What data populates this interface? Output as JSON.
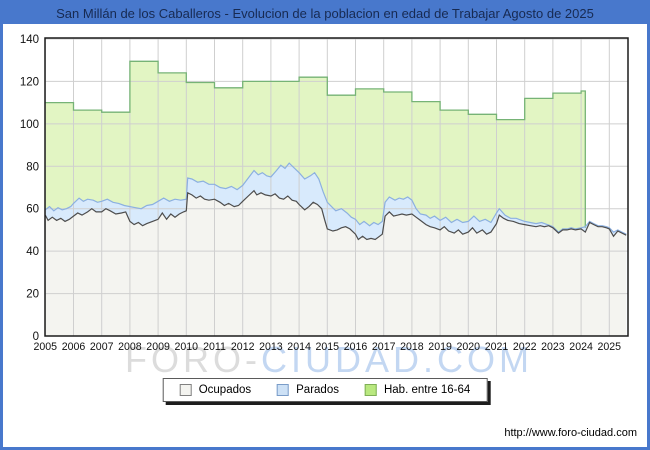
{
  "title_bar": {
    "text": "San Millán de los Caballeros - Evolucion de la poblacion en edad de Trabajar Agosto de 2025"
  },
  "watermark": {
    "part1": "FORO-",
    "part2": "CIUDAD.COM"
  },
  "footer": {
    "url": "http://www.foro-ciudad.com"
  },
  "colors": {
    "frame_blue": "#4878cc",
    "title_text": "#172a52",
    "gridline": "#cfcfcf",
    "plot_frame": "#1b1b1b",
    "hab_line": "#76b376",
    "hab_fill": "#e2f5c3",
    "parados_line": "#8cb0e0",
    "parados_fill": "#d8eafc",
    "ocupados_line": "#4d4d4d",
    "ocupados_fill": "#f4f4f0"
  },
  "legend": {
    "items": [
      {
        "label": "Ocupados",
        "swatch_fill": "#f4f4f0",
        "swatch_border": "#808080"
      },
      {
        "label": "Parados",
        "swatch_fill": "#cde1f6",
        "swatch_border": "#7a9cc8"
      },
      {
        "label": "Hab. entre 16-64",
        "swatch_fill": "#b9e87f",
        "swatch_border": "#7fae57"
      }
    ]
  },
  "chart_data": {
    "type": "area",
    "title": "San Millán de los Caballeros - Evolucion de la poblacion en edad de Trabajar Agosto de 2025",
    "xlabel": "",
    "ylabel": "",
    "xlim": [
      2005,
      2025.66
    ],
    "ylim": [
      0,
      140
    ],
    "y_ticks": [
      0,
      20,
      40,
      60,
      80,
      100,
      120,
      140
    ],
    "x_ticks": [
      "2005",
      "2006",
      "2007",
      "2008",
      "2009",
      "2010",
      "2011",
      "2012",
      "2013",
      "2014",
      "2015",
      "2016",
      "2017",
      "2018",
      "2019",
      "2020",
      "2021",
      "2022",
      "2023",
      "2024",
      "2025"
    ],
    "grid": true,
    "legend_position": "bottom",
    "series": [
      {
        "name": "Hab. entre 16-64",
        "type": "step_area",
        "note": "annual values, series ends early 2024",
        "end_x": 2024.15,
        "points": [
          [
            2005,
            110
          ],
          [
            2006,
            106.5
          ],
          [
            2007,
            105.5
          ],
          [
            2008,
            129.5
          ],
          [
            2009,
            124
          ],
          [
            2010,
            119.5
          ],
          [
            2011,
            117
          ],
          [
            2012,
            120
          ],
          [
            2013,
            120
          ],
          [
            2014,
            122
          ],
          [
            2015,
            113.5
          ],
          [
            2016,
            116.5
          ],
          [
            2017,
            115
          ],
          [
            2018,
            110.5
          ],
          [
            2019,
            106.5
          ],
          [
            2020,
            104.5
          ],
          [
            2021,
            102
          ],
          [
            2022,
            112
          ],
          [
            2023,
            114.5
          ],
          [
            2024,
            115.5
          ]
        ]
      },
      {
        "name": "Parados",
        "type": "area",
        "note": "top edge = Ocupados + Parados (stacked band)",
        "points": [
          [
            2005.0,
            59.5
          ],
          [
            2005.15,
            61
          ],
          [
            2005.3,
            59
          ],
          [
            2005.45,
            60.5
          ],
          [
            2005.6,
            59.5
          ],
          [
            2005.75,
            60
          ],
          [
            2005.9,
            61
          ],
          [
            2006.0,
            62.5
          ],
          [
            2006.2,
            65
          ],
          [
            2006.35,
            63.5
          ],
          [
            2006.5,
            64.5
          ],
          [
            2006.7,
            64
          ],
          [
            2006.85,
            63
          ],
          [
            2007.0,
            63.5
          ],
          [
            2007.2,
            64.5
          ],
          [
            2007.4,
            63
          ],
          [
            2007.6,
            62.5
          ],
          [
            2007.8,
            61.5
          ],
          [
            2008.0,
            61
          ],
          [
            2008.2,
            60.5
          ],
          [
            2008.4,
            60
          ],
          [
            2008.6,
            61.5
          ],
          [
            2008.8,
            62
          ],
          [
            2009.0,
            63.5
          ],
          [
            2009.2,
            65
          ],
          [
            2009.4,
            63.5
          ],
          [
            2009.6,
            64.5
          ],
          [
            2009.8,
            64
          ],
          [
            2010.0,
            64.5
          ],
          [
            2010.05,
            74.5
          ],
          [
            2010.2,
            74
          ],
          [
            2010.4,
            72.5
          ],
          [
            2010.6,
            73
          ],
          [
            2010.8,
            71.5
          ],
          [
            2011.0,
            71.5
          ],
          [
            2011.2,
            70
          ],
          [
            2011.4,
            69.5
          ],
          [
            2011.6,
            70.5
          ],
          [
            2011.8,
            69
          ],
          [
            2012.0,
            71
          ],
          [
            2012.2,
            74.5
          ],
          [
            2012.4,
            78
          ],
          [
            2012.55,
            76
          ],
          [
            2012.7,
            77
          ],
          [
            2012.85,
            75.5
          ],
          [
            2013.0,
            75
          ],
          [
            2013.2,
            78
          ],
          [
            2013.35,
            80.5
          ],
          [
            2013.5,
            79
          ],
          [
            2013.65,
            81.5
          ],
          [
            2013.8,
            79.5
          ],
          [
            2014.0,
            77
          ],
          [
            2014.2,
            74
          ],
          [
            2014.4,
            75.5
          ],
          [
            2014.55,
            77
          ],
          [
            2014.7,
            74
          ],
          [
            2014.85,
            68
          ],
          [
            2015.0,
            63
          ],
          [
            2015.15,
            61
          ],
          [
            2015.3,
            59
          ],
          [
            2015.5,
            60
          ],
          [
            2015.7,
            58
          ],
          [
            2015.85,
            56
          ],
          [
            2016.0,
            55
          ],
          [
            2016.15,
            52.5
          ],
          [
            2016.3,
            54
          ],
          [
            2016.5,
            52
          ],
          [
            2016.65,
            53.5
          ],
          [
            2016.8,
            52.5
          ],
          [
            2016.95,
            54
          ],
          [
            2017.05,
            63
          ],
          [
            2017.2,
            65.5
          ],
          [
            2017.4,
            64
          ],
          [
            2017.55,
            65
          ],
          [
            2017.7,
            64.5
          ],
          [
            2017.85,
            65.5
          ],
          [
            2018.0,
            64
          ],
          [
            2018.15,
            60
          ],
          [
            2018.3,
            57.5
          ],
          [
            2018.5,
            57
          ],
          [
            2018.65,
            55.5
          ],
          [
            2018.8,
            56.5
          ],
          [
            2019.0,
            54.5
          ],
          [
            2019.2,
            56
          ],
          [
            2019.4,
            53.5
          ],
          [
            2019.6,
            55
          ],
          [
            2019.8,
            53.5
          ],
          [
            2020.0,
            54
          ],
          [
            2020.2,
            56.5
          ],
          [
            2020.4,
            54
          ],
          [
            2020.6,
            55
          ],
          [
            2020.8,
            53.5
          ],
          [
            2021.0,
            58
          ],
          [
            2021.1,
            60
          ],
          [
            2021.3,
            57
          ],
          [
            2021.5,
            55.5
          ],
          [
            2021.7,
            55.5
          ],
          [
            2021.9,
            54.5
          ],
          [
            2022.0,
            54
          ],
          [
            2022.2,
            53.5
          ],
          [
            2022.4,
            53
          ],
          [
            2022.6,
            53.5
          ],
          [
            2022.8,
            52.5
          ],
          [
            2023.0,
            51.5
          ],
          [
            2023.2,
            49
          ],
          [
            2023.35,
            50.5
          ],
          [
            2023.5,
            50.5
          ],
          [
            2023.65,
            51
          ],
          [
            2023.8,
            50.5
          ],
          [
            2024.0,
            51
          ],
          [
            2024.15,
            51.5
          ],
          [
            2024.3,
            54
          ],
          [
            2024.45,
            53
          ],
          [
            2024.6,
            52
          ],
          [
            2024.75,
            52
          ],
          [
            2024.9,
            51.5
          ],
          [
            2025.0,
            51
          ],
          [
            2025.15,
            49
          ],
          [
            2025.3,
            50
          ],
          [
            2025.45,
            49
          ],
          [
            2025.6,
            48
          ]
        ]
      },
      {
        "name": "Ocupados",
        "type": "area",
        "points": [
          [
            2005.0,
            57
          ],
          [
            2005.1,
            54.5
          ],
          [
            2005.25,
            56
          ],
          [
            2005.4,
            54.5
          ],
          [
            2005.55,
            55.5
          ],
          [
            2005.7,
            54
          ],
          [
            2005.85,
            55
          ],
          [
            2006.0,
            56.5
          ],
          [
            2006.15,
            58
          ],
          [
            2006.3,
            57
          ],
          [
            2006.5,
            58.5
          ],
          [
            2006.65,
            60
          ],
          [
            2006.8,
            58.5
          ],
          [
            2007.0,
            58.5
          ],
          [
            2007.15,
            60
          ],
          [
            2007.3,
            59
          ],
          [
            2007.5,
            57.5
          ],
          [
            2007.7,
            58
          ],
          [
            2007.85,
            58.5
          ],
          [
            2008.0,
            54
          ],
          [
            2008.15,
            52.5
          ],
          [
            2008.3,
            53.5
          ],
          [
            2008.45,
            52
          ],
          [
            2008.6,
            53
          ],
          [
            2008.8,
            54
          ],
          [
            2009.0,
            55
          ],
          [
            2009.15,
            58
          ],
          [
            2009.3,
            55
          ],
          [
            2009.45,
            57.5
          ],
          [
            2009.6,
            56
          ],
          [
            2009.75,
            57.5
          ],
          [
            2009.9,
            58.5
          ],
          [
            2010.0,
            59
          ],
          [
            2010.05,
            67.5
          ],
          [
            2010.2,
            66.5
          ],
          [
            2010.35,
            65
          ],
          [
            2010.5,
            66
          ],
          [
            2010.65,
            64.5
          ],
          [
            2010.8,
            64
          ],
          [
            2011.0,
            64.5
          ],
          [
            2011.2,
            63
          ],
          [
            2011.35,
            61.5
          ],
          [
            2011.5,
            62.5
          ],
          [
            2011.7,
            61
          ],
          [
            2011.85,
            61.5
          ],
          [
            2012.0,
            63.5
          ],
          [
            2012.2,
            66
          ],
          [
            2012.4,
            68.5
          ],
          [
            2012.5,
            66.5
          ],
          [
            2012.65,
            67.5
          ],
          [
            2012.8,
            66.5
          ],
          [
            2013.0,
            66
          ],
          [
            2013.15,
            67
          ],
          [
            2013.3,
            65
          ],
          [
            2013.45,
            64.5
          ],
          [
            2013.6,
            66
          ],
          [
            2013.75,
            64
          ],
          [
            2013.9,
            63.5
          ],
          [
            2014.0,
            62
          ],
          [
            2014.2,
            59.5
          ],
          [
            2014.35,
            61
          ],
          [
            2014.5,
            63
          ],
          [
            2014.65,
            62
          ],
          [
            2014.8,
            60
          ],
          [
            2014.9,
            55
          ],
          [
            2015.0,
            50.5
          ],
          [
            2015.2,
            49.5
          ],
          [
            2015.35,
            50
          ],
          [
            2015.5,
            51
          ],
          [
            2015.65,
            51.5
          ],
          [
            2015.8,
            50.5
          ],
          [
            2016.0,
            48
          ],
          [
            2016.1,
            45.5
          ],
          [
            2016.25,
            47
          ],
          [
            2016.4,
            45.5
          ],
          [
            2016.55,
            46
          ],
          [
            2016.7,
            45.5
          ],
          [
            2016.85,
            47
          ],
          [
            2016.95,
            48
          ],
          [
            2017.05,
            56.5
          ],
          [
            2017.2,
            58.5
          ],
          [
            2017.35,
            56.5
          ],
          [
            2017.5,
            57
          ],
          [
            2017.65,
            57.5
          ],
          [
            2017.8,
            57
          ],
          [
            2018.0,
            57.5
          ],
          [
            2018.15,
            56
          ],
          [
            2018.3,
            54.5
          ],
          [
            2018.5,
            52.5
          ],
          [
            2018.65,
            51.5
          ],
          [
            2018.8,
            51
          ],
          [
            2019.0,
            50
          ],
          [
            2019.15,
            51.5
          ],
          [
            2019.3,
            49.5
          ],
          [
            2019.5,
            48.5
          ],
          [
            2019.65,
            50
          ],
          [
            2019.8,
            48
          ],
          [
            2020.0,
            49
          ],
          [
            2020.15,
            51
          ],
          [
            2020.3,
            48.5
          ],
          [
            2020.5,
            50
          ],
          [
            2020.65,
            48
          ],
          [
            2020.8,
            49
          ],
          [
            2021.0,
            53
          ],
          [
            2021.1,
            57
          ],
          [
            2021.25,
            55.5
          ],
          [
            2021.4,
            54.5
          ],
          [
            2021.6,
            54
          ],
          [
            2021.8,
            53
          ],
          [
            2022.0,
            52.5
          ],
          [
            2022.2,
            52
          ],
          [
            2022.4,
            51.5
          ],
          [
            2022.55,
            52
          ],
          [
            2022.7,
            51.5
          ],
          [
            2022.85,
            52
          ],
          [
            2023.0,
            51
          ],
          [
            2023.2,
            48.5
          ],
          [
            2023.35,
            50
          ],
          [
            2023.5,
            50
          ],
          [
            2023.65,
            50.5
          ],
          [
            2023.8,
            50
          ],
          [
            2024.0,
            50.5
          ],
          [
            2024.15,
            49
          ],
          [
            2024.3,
            53.5
          ],
          [
            2024.45,
            52.5
          ],
          [
            2024.6,
            51.5
          ],
          [
            2024.75,
            51.5
          ],
          [
            2024.9,
            51
          ],
          [
            2025.0,
            50.5
          ],
          [
            2025.15,
            47
          ],
          [
            2025.3,
            49.5
          ],
          [
            2025.45,
            48.5
          ],
          [
            2025.6,
            47.5
          ]
        ]
      }
    ]
  }
}
